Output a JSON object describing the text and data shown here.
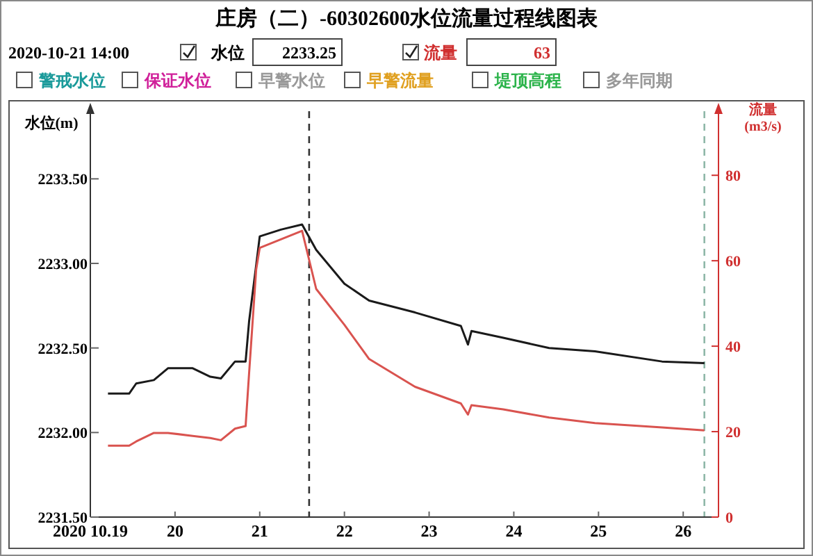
{
  "chart_data": {
    "type": "line",
    "title": "庄房（二）-60302600水位流量过程线图表",
    "ylabel": "水位(m)",
    "y2label": "流量(m3/s)",
    "annotations": [
      "2020-10-21 14:00",
      "水位",
      "2233.25",
      "流量",
      "63",
      "警戒水位",
      "保证水位",
      "早警水位",
      "早警流量",
      "堤顶高程",
      "多年同期"
    ],
    "x": [
      "2020-10-19T05:00",
      "2020-10-19T11:00",
      "2020-10-19T13:00",
      "2020-10-19T18:00",
      "2020-10-19T22:00",
      "2020-10-20T05:00",
      "2020-10-20T10:00",
      "2020-10-20T13:00",
      "2020-10-20T17:00",
      "2020-10-20T20:00",
      "2020-10-20T21:00",
      "2020-10-20T23:00",
      "2020-10-21T00:00",
      "2020-10-21T06:00",
      "2020-10-21T12:00",
      "2020-10-21T16:00",
      "2020-10-22T00:00",
      "2020-10-22T07:00",
      "2020-10-22T20:00",
      "2020-10-23T09:00",
      "2020-10-23T11:00",
      "2020-10-23T12:00",
      "2020-10-23T21:00",
      "2020-10-24T10:00",
      "2020-10-24T23:00",
      "2020-10-25T18:00",
      "2020-10-26T06:00"
    ],
    "series": [
      {
        "color": "#1a1a1a",
        "values": [
          2232.23,
          2232.23,
          2232.29,
          2232.31,
          2232.38,
          2232.38,
          2232.33,
          2232.32,
          2232.42,
          2232.42,
          2232.66,
          2232.99,
          2233.16,
          2233.2,
          2233.23,
          2233.08,
          2232.88,
          2232.78,
          2232.71,
          2232.63,
          2232.52,
          2232.6,
          2232.56,
          2232.5,
          2232.48,
          2232.42,
          2232.41
        ]
      },
      {
        "color": "#d9534f",
        "axis": "y2",
        "values": [
          16.7,
          16.7,
          17.7,
          19.7,
          19.7,
          19,
          18.5,
          18,
          20.7,
          21.3,
          33.8,
          58,
          63,
          65,
          67,
          53.4,
          45,
          37,
          30.5,
          26.6,
          24,
          26.2,
          25.2,
          23.3,
          22,
          21,
          20.3
        ]
      }
    ],
    "xlim": [
      "2020-10-19T00:00",
      "2020-10-26T10:00"
    ],
    "xticks": [
      {
        "value": "2020-10-19",
        "label": "2020 10.19"
      },
      {
        "value": "2020-10-20",
        "label": "20"
      },
      {
        "value": "2020-10-21",
        "label": "21"
      },
      {
        "value": "2020-10-22",
        "label": "22"
      },
      {
        "value": "2020-10-23",
        "label": "23"
      },
      {
        "value": "2020-10-24",
        "label": "24"
      },
      {
        "value": "2020-10-25",
        "label": "25"
      },
      {
        "value": "2020-10-26",
        "label": "26"
      }
    ],
    "ylim": [
      2231.5,
      2233.9
    ],
    "yticks": [
      {
        "value": 2231.5,
        "label": "2231.50"
      },
      {
        "value": 2232,
        "label": "2232.00"
      },
      {
        "value": 2232.5,
        "label": "2232.50"
      },
      {
        "value": 2233,
        "label": "2233.00"
      },
      {
        "value": 2233.5,
        "label": "2233.50"
      }
    ],
    "y2lim": [
      0,
      95
    ],
    "y2ticks": [
      0,
      20,
      40,
      60,
      80
    ],
    "ref_lines": [
      {
        "axis": "x",
        "value": "2020-10-21T14:00",
        "color": "#333333",
        "line_style": "dashed"
      },
      {
        "axis": "x",
        "value": "2020-10-26T06:00",
        "color": "#8fb8a8",
        "line_style": "dashed"
      }
    ],
    "grid": false,
    "marker": "none",
    "line_style": "solid"
  }
}
